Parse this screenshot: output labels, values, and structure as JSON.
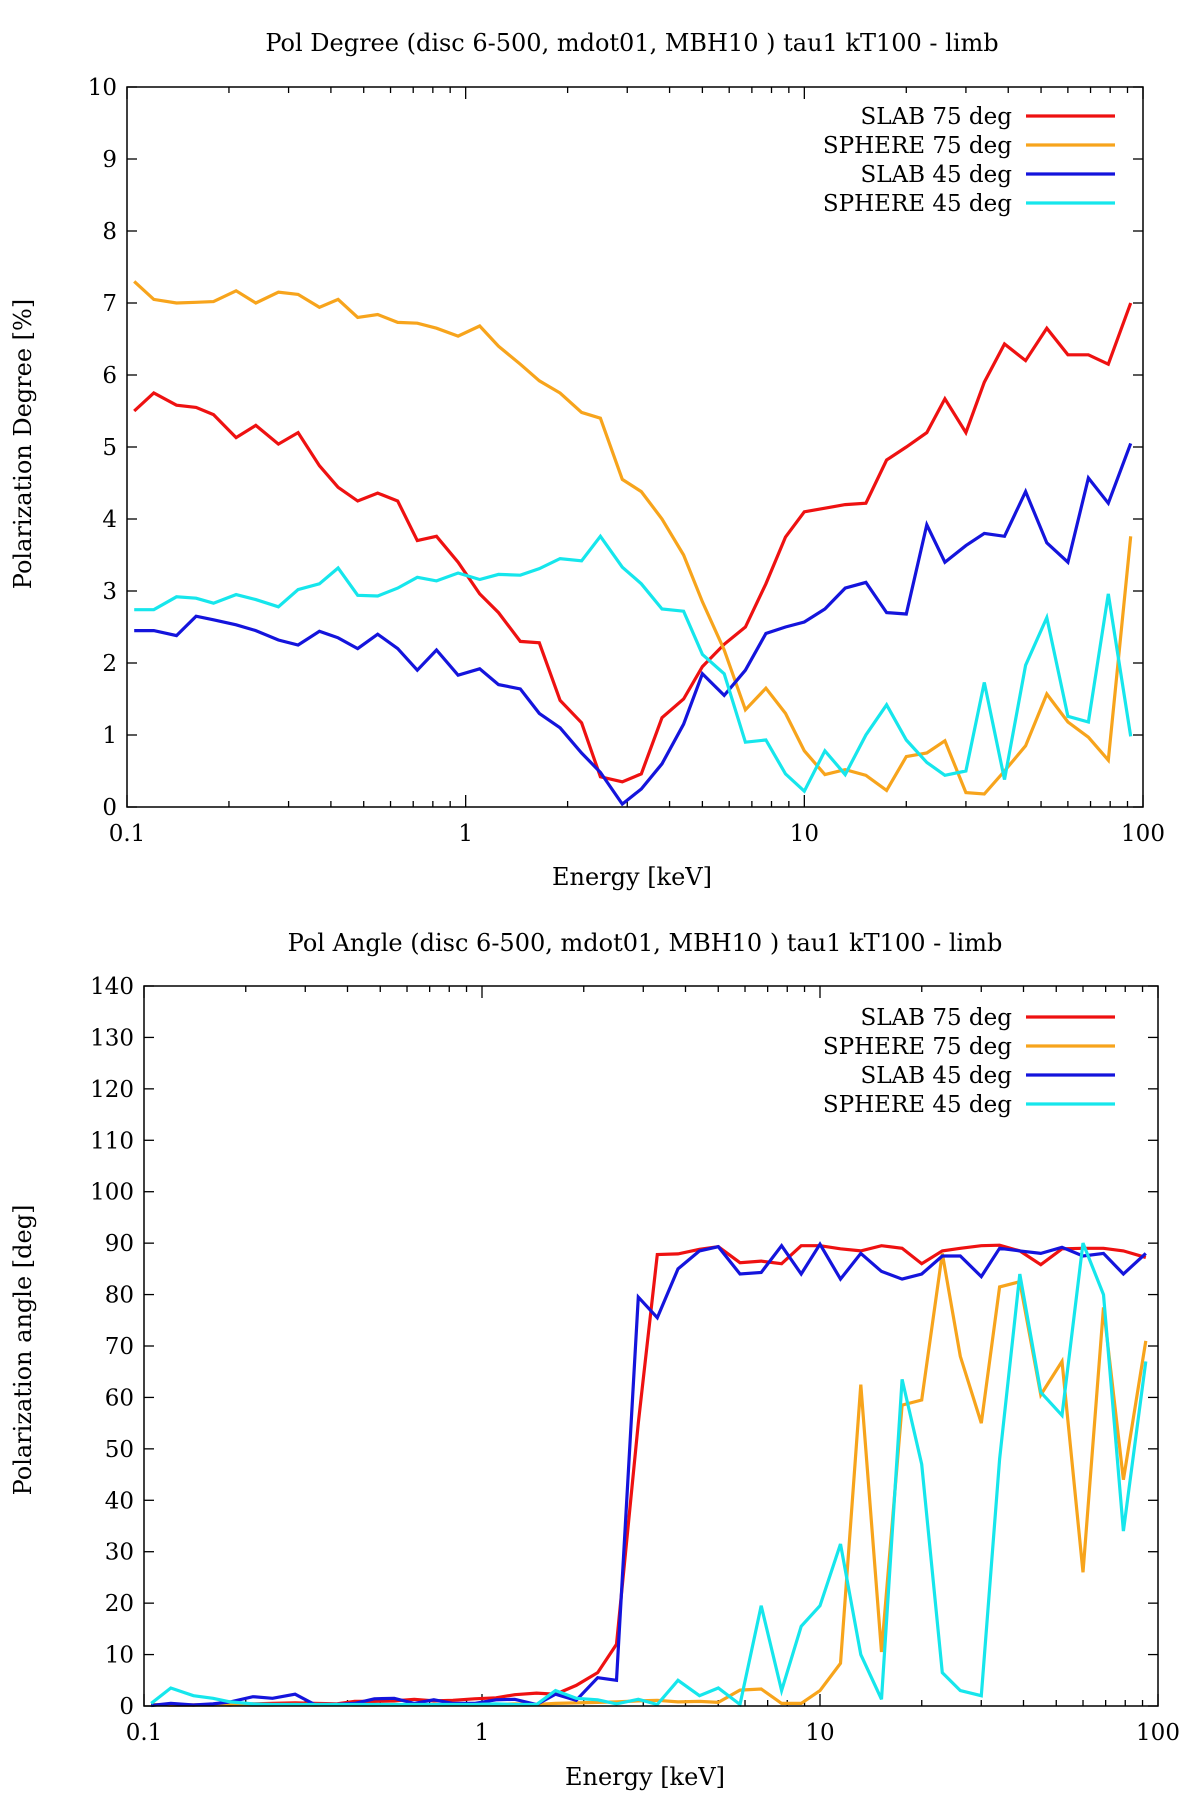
{
  "colors": {
    "slab75": "#ee1111",
    "sphere75": "#f7a41c",
    "slab45": "#1414dc",
    "sphere45": "#16e6ec"
  },
  "chart_data": [
    {
      "type": "line",
      "title": "Pol Degree (disc 6-500, mdot01, MBH10 ) tau1 kT100 - limb",
      "xlabel": "Energy [keV]",
      "ylabel": "Polarization Degree [%]",
      "xscale": "log",
      "xlim": [
        0.1,
        100
      ],
      "ylim": [
        0,
        10
      ],
      "xticks": [
        0.1,
        1,
        10,
        100
      ],
      "xtick_labels": [
        "0.1",
        "1",
        "10",
        "100"
      ],
      "yticks": [
        0,
        1,
        2,
        3,
        4,
        5,
        6,
        7,
        8,
        9,
        10
      ],
      "ytick_labels": [
        "0",
        "1",
        "2",
        "3",
        "4",
        "5",
        "6",
        "7",
        "8",
        "9",
        "10"
      ],
      "legend_position": "top-right",
      "series": [
        {
          "name": "SLAB 75 deg",
          "color_key": "slab75",
          "x": [
            0.105,
            0.12,
            0.14,
            0.16,
            0.18,
            0.21,
            0.24,
            0.28,
            0.32,
            0.37,
            0.42,
            0.48,
            0.55,
            0.63,
            0.72,
            0.82,
            0.95,
            1.1,
            1.25,
            1.45,
            1.65,
            1.9,
            2.2,
            2.5,
            2.9,
            3.3,
            3.8,
            4.4,
            5.0,
            5.8,
            6.7,
            7.7,
            8.8,
            10,
            11.5,
            13.2,
            15.2,
            17.5,
            20,
            23,
            26,
            30,
            34,
            39,
            45,
            52,
            60,
            69,
            79,
            92
          ],
          "y": [
            5.5,
            5.75,
            5.58,
            5.55,
            5.45,
            5.13,
            5.3,
            5.04,
            5.2,
            4.74,
            4.44,
            4.25,
            4.36,
            4.25,
            3.7,
            3.76,
            3.4,
            2.96,
            2.7,
            2.3,
            2.28,
            1.48,
            1.17,
            0.42,
            0.35,
            0.46,
            1.24,
            1.5,
            1.95,
            2.26,
            2.5,
            3.1,
            3.75,
            4.1,
            4.15,
            4.2,
            4.22,
            4.82,
            5.0,
            5.2,
            5.67,
            5.2,
            5.9,
            6.43,
            6.2,
            6.65,
            6.28,
            6.28,
            6.15,
            7.0
          ]
        },
        {
          "name": "SPHERE 75 deg",
          "color_key": "sphere75",
          "x": [
            0.105,
            0.12,
            0.14,
            0.16,
            0.18,
            0.21,
            0.24,
            0.28,
            0.32,
            0.37,
            0.42,
            0.48,
            0.55,
            0.63,
            0.72,
            0.82,
            0.95,
            1.1,
            1.25,
            1.45,
            1.65,
            1.9,
            2.2,
            2.5,
            2.9,
            3.3,
            3.8,
            4.4,
            5.0,
            5.8,
            6.7,
            7.7,
            8.8,
            10,
            11.5,
            13.2,
            15.2,
            17.5,
            20,
            23,
            26,
            30,
            34,
            39,
            45,
            52,
            60,
            69,
            79,
            92
          ],
          "y": [
            7.3,
            7.05,
            7.0,
            7.01,
            7.02,
            7.17,
            7.0,
            7.15,
            7.12,
            6.94,
            7.05,
            6.8,
            6.84,
            6.73,
            6.72,
            6.65,
            6.54,
            6.68,
            6.4,
            6.15,
            5.92,
            5.75,
            5.48,
            5.4,
            4.55,
            4.38,
            4.0,
            3.5,
            2.85,
            2.18,
            1.35,
            1.65,
            1.3,
            0.78,
            0.45,
            0.52,
            0.44,
            0.23,
            0.7,
            0.75,
            0.92,
            0.2,
            0.18,
            0.5,
            0.85,
            1.57,
            1.18,
            0.97,
            0.65,
            3.76
          ]
        },
        {
          "name": "SLAB 45 deg",
          "color_key": "slab45",
          "x": [
            0.105,
            0.12,
            0.14,
            0.16,
            0.18,
            0.21,
            0.24,
            0.28,
            0.32,
            0.37,
            0.42,
            0.48,
            0.55,
            0.63,
            0.72,
            0.82,
            0.95,
            1.1,
            1.25,
            1.45,
            1.65,
            1.9,
            2.2,
            2.5,
            2.9,
            3.3,
            3.8,
            4.4,
            5.0,
            5.8,
            6.7,
            7.7,
            8.8,
            10,
            11.5,
            13.2,
            15.2,
            17.5,
            20,
            23,
            26,
            30,
            34,
            39,
            45,
            52,
            60,
            69,
            79,
            92
          ],
          "y": [
            2.45,
            2.45,
            2.38,
            2.65,
            2.6,
            2.53,
            2.45,
            2.32,
            2.25,
            2.44,
            2.35,
            2.2,
            2.4,
            2.2,
            1.9,
            2.18,
            1.83,
            1.92,
            1.7,
            1.64,
            1.3,
            1.1,
            0.75,
            0.48,
            0.04,
            0.25,
            0.6,
            1.15,
            1.85,
            1.55,
            1.9,
            2.41,
            2.5,
            2.57,
            2.75,
            3.04,
            3.12,
            2.7,
            2.68,
            3.92,
            3.4,
            3.63,
            3.8,
            3.76,
            4.38,
            3.67,
            3.4,
            4.57,
            4.22,
            5.05
          ]
        },
        {
          "name": "SPHERE 45 deg",
          "color_key": "sphere45",
          "x": [
            0.105,
            0.12,
            0.14,
            0.16,
            0.18,
            0.21,
            0.24,
            0.28,
            0.32,
            0.37,
            0.42,
            0.48,
            0.55,
            0.63,
            0.72,
            0.82,
            0.95,
            1.1,
            1.25,
            1.45,
            1.65,
            1.9,
            2.2,
            2.5,
            2.9,
            3.3,
            3.8,
            4.4,
            5.0,
            5.8,
            6.7,
            7.7,
            8.8,
            10,
            11.5,
            13.2,
            15.2,
            17.5,
            20,
            23,
            26,
            30,
            34,
            39,
            45,
            52,
            60,
            69,
            79,
            92
          ],
          "y": [
            2.74,
            2.74,
            2.92,
            2.9,
            2.83,
            2.95,
            2.88,
            2.78,
            3.02,
            3.1,
            3.32,
            2.94,
            2.93,
            3.04,
            3.19,
            3.14,
            3.25,
            3.16,
            3.23,
            3.22,
            3.31,
            3.45,
            3.42,
            3.76,
            3.33,
            3.1,
            2.75,
            2.72,
            2.12,
            1.85,
            0.9,
            0.93,
            0.46,
            0.22,
            0.78,
            0.45,
            1.0,
            1.42,
            0.93,
            0.62,
            0.44,
            0.5,
            1.73,
            0.38,
            1.97,
            2.63,
            1.26,
            1.18,
            2.96,
            0.98
          ]
        }
      ]
    },
    {
      "type": "line",
      "title": "Pol Angle (disc 6-500, mdot01, MBH10 ) tau1 kT100 - limb",
      "xlabel": "Energy [keV]",
      "ylabel": "Polarization angle [deg]",
      "xscale": "log",
      "xlim": [
        0.1,
        100
      ],
      "ylim": [
        0,
        140
      ],
      "xticks": [
        0.1,
        1,
        10,
        100
      ],
      "xtick_labels": [
        "0.1",
        "1",
        "10",
        "100"
      ],
      "yticks": [
        0,
        10,
        20,
        30,
        40,
        50,
        60,
        70,
        80,
        90,
        100,
        110,
        120,
        130,
        140
      ],
      "ytick_labels": [
        "0",
        "10",
        "20",
        "30",
        "40",
        "50",
        "60",
        "70",
        "80",
        "90",
        "100",
        "110",
        "120",
        "130",
        "140"
      ],
      "legend_position": "top-right",
      "series": [
        {
          "name": "SLAB 75 deg",
          "color_key": "slab75",
          "x": [
            0.105,
            0.12,
            0.14,
            0.16,
            0.18,
            0.21,
            0.24,
            0.28,
            0.32,
            0.37,
            0.42,
            0.48,
            0.55,
            0.63,
            0.72,
            0.82,
            0.95,
            1.1,
            1.25,
            1.45,
            1.65,
            1.9,
            2.2,
            2.5,
            2.9,
            3.3,
            3.8,
            4.4,
            5.0,
            5.8,
            6.7,
            7.7,
            8.8,
            10,
            11.5,
            13.2,
            15.2,
            17.5,
            20,
            23,
            26,
            30,
            34,
            39,
            45,
            52,
            60,
            69,
            79,
            92
          ],
          "y": [
            0.3,
            0.2,
            0.2,
            0.3,
            0.2,
            0.4,
            0.5,
            0.6,
            0.5,
            0.4,
            0.9,
            0.9,
            1.0,
            1.3,
            1.0,
            1.1,
            1.4,
            1.6,
            2.2,
            2.5,
            2.3,
            4.0,
            6.5,
            12.0,
            55.0,
            87.8,
            87.9,
            88.8,
            89.3,
            86.2,
            86.5,
            86.0,
            89.5,
            89.5,
            88.9,
            88.5,
            89.5,
            89.0,
            86.0,
            88.5,
            89.0,
            89.5,
            89.6,
            88.5,
            85.8,
            88.9,
            89.0,
            89.0,
            88.5,
            87.2
          ]
        },
        {
          "name": "SPHERE 75 deg",
          "color_key": "sphere75",
          "x": [
            0.105,
            0.12,
            0.14,
            0.16,
            0.18,
            0.21,
            0.24,
            0.28,
            0.32,
            0.37,
            0.42,
            0.48,
            0.55,
            0.63,
            0.72,
            0.82,
            0.95,
            1.1,
            1.25,
            1.45,
            1.65,
            1.9,
            2.2,
            2.5,
            2.9,
            3.3,
            3.8,
            4.4,
            5.0,
            5.8,
            6.7,
            7.7,
            8.8,
            10,
            11.5,
            13.2,
            15.2,
            17.5,
            20,
            23,
            26,
            30,
            34,
            39,
            45,
            52,
            60,
            69,
            79,
            92
          ],
          "y": [
            0.3,
            0.2,
            0.2,
            0.2,
            0.3,
            0.2,
            0.2,
            0.3,
            0.2,
            0.3,
            0.2,
            0.2,
            0.3,
            0.2,
            0.3,
            0.3,
            0.2,
            0.3,
            0.4,
            0.3,
            0.5,
            0.6,
            0.7,
            0.8,
            1.0,
            1.1,
            0.8,
            0.9,
            0.7,
            3.1,
            3.3,
            0.5,
            0.5,
            3.0,
            8.3,
            62.5,
            10.5,
            58.5,
            59.5,
            88.0,
            68.0,
            55.0,
            81.5,
            82.5,
            60.5,
            67.0,
            26.0,
            77.5,
            44.0,
            71.0
          ]
        },
        {
          "name": "SLAB 45 deg",
          "color_key": "slab45",
          "x": [
            0.105,
            0.12,
            0.14,
            0.16,
            0.18,
            0.21,
            0.24,
            0.28,
            0.32,
            0.37,
            0.42,
            0.48,
            0.55,
            0.63,
            0.72,
            0.82,
            0.95,
            1.1,
            1.25,
            1.45,
            1.65,
            1.9,
            2.2,
            2.5,
            2.9,
            3.3,
            3.8,
            4.4,
            5.0,
            5.8,
            6.7,
            7.7,
            8.8,
            10,
            11.5,
            13.2,
            15.2,
            17.5,
            20,
            23,
            26,
            30,
            34,
            39,
            45,
            52,
            60,
            69,
            79,
            92
          ],
          "y": [
            0.1,
            0.5,
            0.2,
            0.4,
            0.8,
            1.8,
            1.5,
            2.3,
            0.3,
            0.3,
            0.5,
            1.4,
            1.5,
            0.5,
            1.2,
            0.5,
            0.5,
            1.2,
            1.3,
            0.3,
            2.3,
            1.1,
            5.5,
            5.0,
            79.5,
            75.5,
            85.0,
            88.5,
            89.3,
            84.0,
            84.3,
            89.5,
            84.0,
            89.8,
            83.0,
            88.0,
            84.5,
            83.0,
            84.0,
            87.5,
            87.5,
            83.5,
            89.0,
            88.5,
            88.0,
            89.2,
            87.5,
            88.0,
            84.0,
            88.0
          ]
        },
        {
          "name": "SPHERE 45 deg",
          "color_key": "sphere45",
          "x": [
            0.105,
            0.12,
            0.14,
            0.16,
            0.18,
            0.21,
            0.24,
            0.28,
            0.32,
            0.37,
            0.42,
            0.48,
            0.55,
            0.63,
            0.72,
            0.82,
            0.95,
            1.1,
            1.25,
            1.45,
            1.65,
            1.9,
            2.2,
            2.5,
            2.9,
            3.3,
            3.8,
            4.4,
            5.0,
            5.8,
            6.7,
            7.7,
            8.8,
            10,
            11.5,
            13.2,
            15.2,
            17.5,
            20,
            23,
            26,
            30,
            34,
            39,
            45,
            52,
            60,
            69,
            79,
            92
          ],
          "y": [
            0.5,
            3.5,
            2.0,
            1.5,
            0.8,
            0.4,
            0.3,
            0.3,
            0.3,
            0.3,
            0.3,
            0.3,
            0.3,
            0.3,
            0.3,
            0.3,
            0.3,
            0.4,
            0.3,
            0.3,
            3.0,
            1.5,
            1.2,
            0.4,
            1.3,
            0.3,
            5.0,
            2.0,
            3.5,
            0.3,
            19.5,
            3.0,
            15.5,
            19.5,
            31.5,
            10.0,
            1.3,
            63.5,
            47.0,
            6.5,
            3.0,
            2.0,
            48.0,
            84.0,
            61.0,
            56.5,
            90.0,
            80.0,
            34.0,
            67.0
          ]
        }
      ]
    }
  ]
}
